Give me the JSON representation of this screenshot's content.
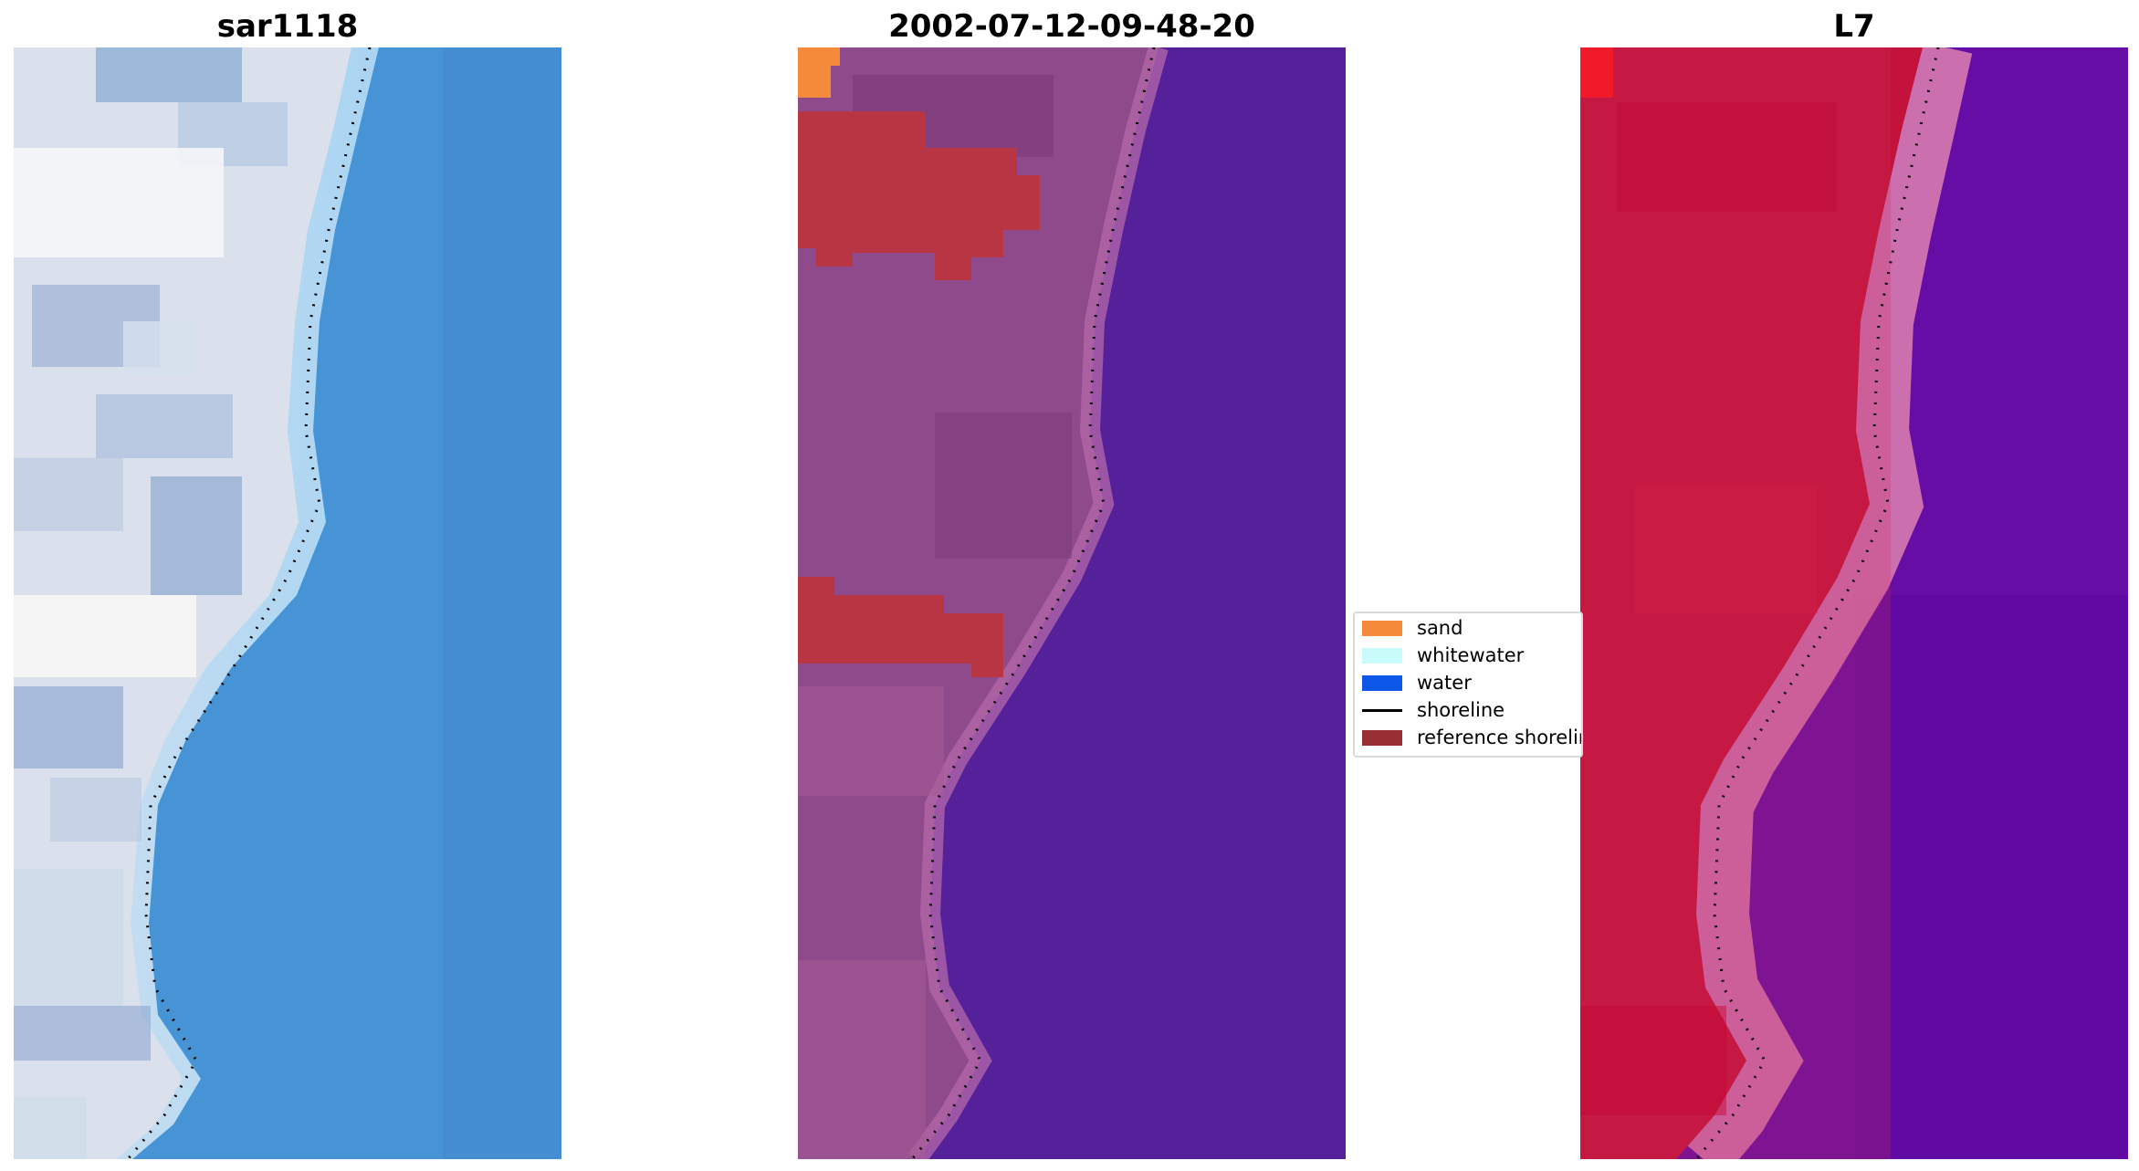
{
  "panels": [
    {
      "title": "sar1118"
    },
    {
      "title": "2002-07-12-09-48-20"
    },
    {
      "title": "L7"
    }
  ],
  "legend": {
    "items": [
      {
        "label": "sand",
        "color": "#f58a3a",
        "kind": "patch"
      },
      {
        "label": "whitewater",
        "color": "#c9fbfb",
        "kind": "patch"
      },
      {
        "label": "water",
        "color": "#0c56e8",
        "kind": "patch"
      },
      {
        "label": "shoreline",
        "color": "#000000",
        "kind": "line"
      },
      {
        "label": "reference shoreline",
        "color": "#982f34",
        "kind": "patch"
      }
    ]
  },
  "colors": {
    "rgb_land": "#dfe4ee",
    "rgb_whitewater": "#b8dcf4",
    "rgb_water": "#4694d6",
    "class_background": "#54219a",
    "class_land": "#8e4a8a",
    "class_sand": "#f58a3a",
    "class_reference": "#b83544",
    "index_land": "#c3123c",
    "index_transition": "#d77ab0",
    "index_water": "#660da6",
    "shoreline_dots": "#000000"
  }
}
